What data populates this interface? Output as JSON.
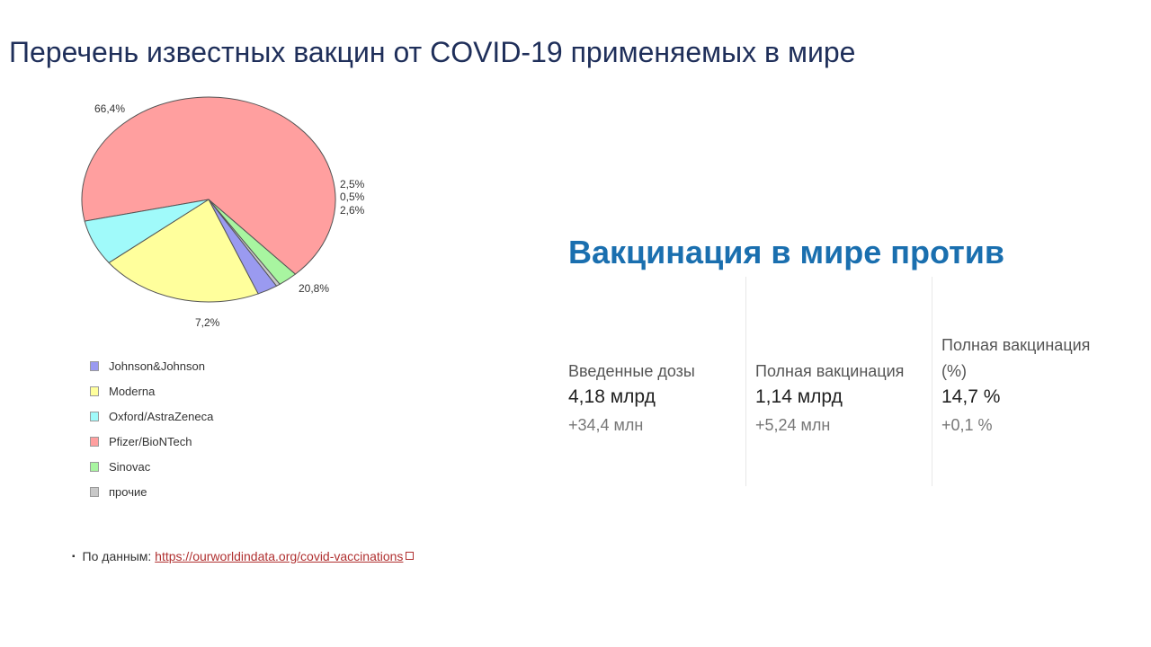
{
  "slide": {
    "title": "Перечень известных вакцин от COVID-19 применяемых в мире"
  },
  "chart_data": {
    "type": "pie",
    "title": "",
    "slices": [
      {
        "label": "Pfizer/BioNTech",
        "value": 66.4,
        "display": "66,4%",
        "color": "#ff9f9f"
      },
      {
        "label": "Sinovac",
        "value": 2.5,
        "display": "2,5%",
        "color": "#a8f5a0"
      },
      {
        "label": "прочие",
        "value": 0.5,
        "display": "0,5%",
        "color": "#c8c8c8"
      },
      {
        "label": "Johnson&Johnson",
        "value": 2.6,
        "display": "2,6%",
        "color": "#9a9af0"
      },
      {
        "label": "Moderna",
        "value": 20.8,
        "display": "20,8%",
        "color": "#ffff9c"
      },
      {
        "label": "Oxford/AstraZeneca",
        "value": 7.2,
        "display": "7,2%",
        "color": "#a0fafa"
      }
    ],
    "legend_order": [
      "Johnson&Johnson",
      "Moderna",
      "Oxford/AstraZeneca",
      "Pfizer/BioNTech",
      "Sinovac",
      "прочие"
    ],
    "legend_position": "bottom"
  },
  "source": {
    "label": "По данным:",
    "link_text": "https://ourworldindata.org/covid-vaccinations"
  },
  "stats_panel": {
    "title": "Вакцинация в мире против",
    "columns": [
      {
        "label": "Введенные дозы",
        "value": "4,18 млрд",
        "delta": "+34,4 млн"
      },
      {
        "label": "Полная вакцинация",
        "value": "1,14 млрд",
        "delta": "+5,24 млн"
      },
      {
        "label": "Полная вакцинация (%)",
        "value": "14,7 %",
        "delta": "+0,1 %"
      }
    ]
  }
}
